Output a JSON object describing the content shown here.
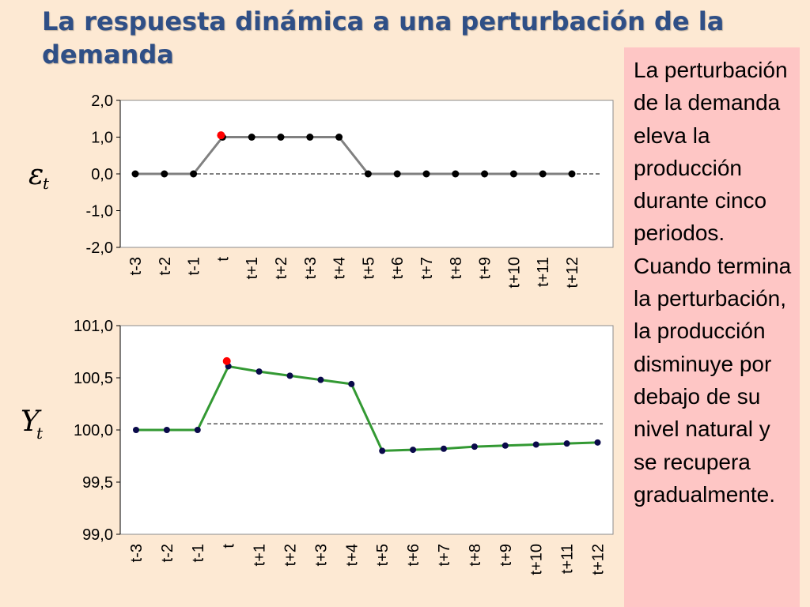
{
  "slide": {
    "title": "La respuesta dinámica a una perturbación de la demanda",
    "note": "La perturbación de la demanda eleva la producción durante cinco periodos. Cuando termina la perturbación, la producción disminuye por debajo de su nivel natural y se recupera gradualmente."
  },
  "chart_data": [
    {
      "type": "line",
      "ylabel_symbol": "ε",
      "ylabel_subscript": "t",
      "categories": [
        "t-3",
        "t-2",
        "t-1",
        "t",
        "t+1",
        "t+2",
        "t+3",
        "t+4",
        "t+5",
        "t+6",
        "t+7",
        "t+8",
        "t+9",
        "t+10",
        "t+11",
        "t+12"
      ],
      "series": [
        {
          "values": [
            0,
            0,
            0,
            1,
            1,
            1,
            1,
            1,
            0,
            0,
            0,
            0,
            0,
            0,
            0,
            0
          ],
          "color": "#808080",
          "marker_color": "#000000"
        }
      ],
      "highlight": {
        "category": "t",
        "value": 1.05,
        "color": "#ff0000"
      },
      "reference_line": 0,
      "yticks": [
        "2,0",
        "1,0",
        "0,0",
        "-1,0",
        "-2,0"
      ],
      "ylim": [
        -2,
        2
      ],
      "grid": false
    },
    {
      "type": "line",
      "ylabel_symbol": "Y",
      "ylabel_subscript": "t",
      "categories": [
        "t-3",
        "t-2",
        "t-1",
        "t",
        "t+1",
        "t+2",
        "t+3",
        "t+4",
        "t+5",
        "t+6",
        "t+7",
        "t+8",
        "t+9",
        "t+10",
        "t+11",
        "t+12"
      ],
      "series": [
        {
          "values": [
            100.0,
            100.0,
            100.0,
            100.61,
            100.56,
            100.52,
            100.48,
            100.44,
            99.8,
            99.81,
            99.82,
            99.84,
            99.85,
            99.86,
            99.87,
            99.88
          ],
          "color": "#339933",
          "marker_color": "#0a0a4a"
        }
      ],
      "highlight": {
        "category": "t",
        "value": 100.66,
        "color": "#ff0000"
      },
      "reference_line": 100.06,
      "yticks": [
        "101,0",
        "100,5",
        "100,0",
        "99,5",
        "99,0"
      ],
      "ylim": [
        99,
        101
      ],
      "grid": false
    }
  ]
}
